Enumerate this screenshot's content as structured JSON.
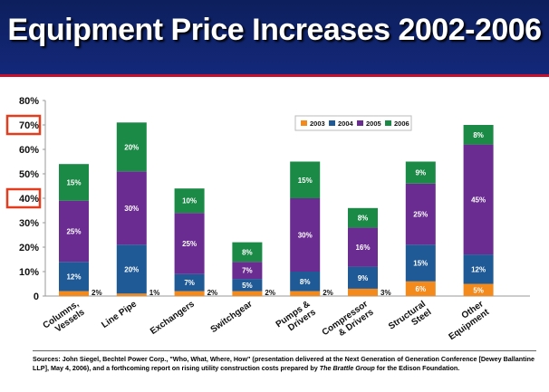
{
  "slide": {
    "title": "Equipment Price Increases 2002-2006",
    "sources_prefix": "Sources: John Siegel, Bechtel Power Corp., \"Who, What, Where, How\" (presentation delivered at the Next Generation of Generation Conference [Dewey Ballantine LLP], May 4, 2006), and a forthcoming report on rising utility construction costs prepared by ",
    "sources_emph": "The Brattle Group",
    "sources_suffix": " for the Edison Foundation."
  },
  "colors": {
    "2003": "#f28a1e",
    "2004": "#1f5a96",
    "2005": "#6a2c91",
    "2006": "#1a8a46",
    "highlight": "#e53c1e",
    "title_bg": "#0d1f5c",
    "title_rule": "#c8102e"
  },
  "chart_data": {
    "type": "bar",
    "stacked": true,
    "categories": [
      "Columns, Vessels",
      "Line Pipe",
      "Exchangers",
      "Switchgear",
      "Pumps & Drivers",
      "Compressor & Drivers",
      "Structural Steel",
      "Other Equipment"
    ],
    "series": [
      {
        "name": "2003",
        "values": [
          2,
          1,
          2,
          2,
          2,
          3,
          6,
          5
        ]
      },
      {
        "name": "2004",
        "values": [
          12,
          20,
          7,
          5,
          8,
          9,
          15,
          12
        ]
      },
      {
        "name": "2005",
        "values": [
          25,
          30,
          25,
          7,
          30,
          16,
          25,
          45
        ]
      },
      {
        "name": "2006",
        "values": [
          15,
          20,
          10,
          8,
          15,
          8,
          9,
          8
        ]
      }
    ],
    "data_labels": [
      [
        "2%",
        "12%",
        "25%",
        "15%"
      ],
      [
        "1%",
        "20%",
        "30%",
        "20%"
      ],
      [
        "2%",
        "7%",
        "25%",
        "10%"
      ],
      [
        "2%",
        "5%",
        "7%",
        "8%"
      ],
      [
        "2%",
        "8%",
        "30%",
        "15%"
      ],
      [
        "3%",
        "9%",
        "16%",
        "8%"
      ],
      [
        "6%",
        "15%",
        "25%",
        "9%"
      ],
      [
        "5%",
        "12%",
        "45%",
        "8%"
      ]
    ],
    "y_ticks": [
      "0",
      "10%",
      "20%",
      "30%",
      "40%",
      "50%",
      "60%",
      "70%",
      "80%"
    ],
    "ylim": [
      0,
      80
    ],
    "highlighted_ticks": [
      "40%",
      "70%"
    ],
    "legend": [
      "2003",
      "2004",
      "2005",
      "2006"
    ],
    "legend_position": "top-right",
    "grid": false
  }
}
